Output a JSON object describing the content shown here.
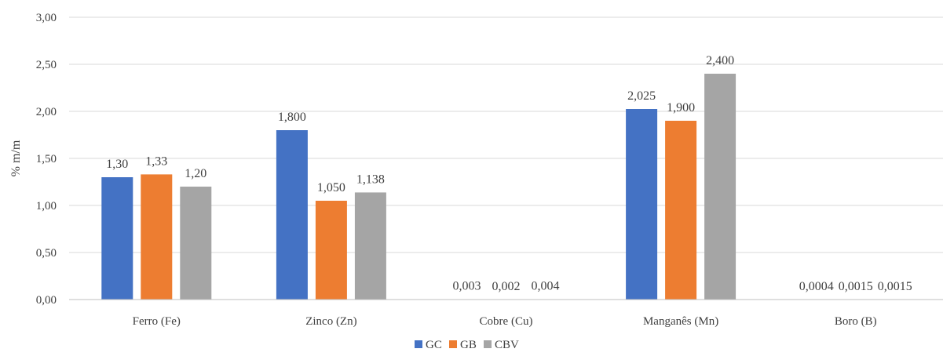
{
  "chart_data": {
    "type": "bar",
    "title": "",
    "xlabel": "",
    "ylabel": "% m/m",
    "ylim": [
      0,
      3
    ],
    "yticks": [
      0,
      0.5,
      1,
      1.5,
      2,
      2.5,
      3
    ],
    "yticklabels": [
      "0,00",
      "0,50",
      "1,00",
      "1,50",
      "2,00",
      "2,50",
      "3,00"
    ],
    "grid": true,
    "legend_position": "bottom",
    "categories": [
      "Ferro (Fe)",
      "Zinco (Zn)",
      "Cobre (Cu)",
      "Manganês (Mn)",
      "Boro (B)"
    ],
    "series": [
      {
        "name": "GC",
        "color": "#4472C4",
        "values": [
          1.3,
          1.8,
          0.003,
          2.025,
          0.0004
        ],
        "labels": [
          "1,30",
          "1,800",
          "0,003",
          "2,025",
          "0,0004"
        ]
      },
      {
        "name": "GB",
        "color": "#ED7D31",
        "values": [
          1.33,
          1.05,
          0.002,
          1.9,
          0.0015
        ],
        "labels": [
          "1,33",
          "1,050",
          "0,002",
          "1,900",
          "0,0015"
        ]
      },
      {
        "name": "CBV",
        "color": "#A5A5A5",
        "values": [
          1.2,
          1.138,
          0.004,
          2.4,
          0.0015
        ],
        "labels": [
          "1,20",
          "1,138",
          "0,004",
          "2,400",
          "0,0015"
        ]
      }
    ]
  }
}
